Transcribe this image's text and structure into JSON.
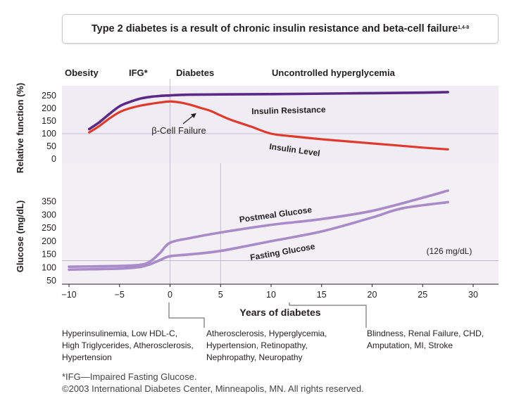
{
  "title": {
    "text": "Type 2 diabetes is a result of chronic insulin resistance and beta-cell failure",
    "refs": "1,4-8"
  },
  "stages": [
    {
      "label": "Obesity"
    },
    {
      "label": "IFG*"
    },
    {
      "label": "Diabetes"
    },
    {
      "label": "Uncontrolled hyperglycemia"
    }
  ],
  "complications": [
    {
      "lines": [
        "Hyperinsulinemia, Low HDL-C,",
        "High Triglycerides, Atherosclerosis,",
        "Hypertension"
      ]
    },
    {
      "lines": [
        "Atherosclerosis, Hyperglycemia,",
        "Hypertension, Retinopathy,",
        "Nephropathy, Neuropathy"
      ]
    },
    {
      "lines": [
        "Blindness, Renal Failure, CHD,",
        "Amputation, MI, Stroke"
      ]
    }
  ],
  "footnotes": {
    "ifg": "*IFG—Impaired Fasting Glucose.",
    "copyright": "©2003 International Diabetes Center, Minneapolis, MN. All rights reserved."
  },
  "colors": {
    "insulin_resistance": "#5b2a86",
    "insulin_level": "#e03a2f",
    "glucose": "#a98bc9",
    "panel_bg": "#efecf3",
    "text": "#231f20"
  },
  "chart_data": [
    {
      "type": "line",
      "panel": "top",
      "ylabel": "Relative function (%)",
      "ylim": [
        0,
        250
      ],
      "yticks": [
        0,
        50,
        100,
        150,
        200,
        250
      ],
      "xlim": [
        -10,
        30
      ],
      "reference_lines": [
        {
          "y": 100
        }
      ],
      "series": [
        {
          "name": "Insulin Resistance",
          "color": "#5b2a86",
          "x": [
            -8,
            -7,
            -6,
            -5,
            -4,
            -3,
            -2,
            -1,
            0,
            1,
            2,
            5,
            10,
            15,
            20,
            25,
            27.5
          ],
          "y": [
            118,
            145,
            178,
            208,
            225,
            238,
            245,
            249,
            251,
            253,
            254,
            255,
            256,
            258,
            260,
            262,
            264
          ]
        },
        {
          "name": "Insulin Level",
          "color": "#e03a2f",
          "x": [
            -8,
            -7,
            -6,
            -5,
            -4,
            -3,
            -2,
            -1,
            0,
            1,
            2,
            3,
            4,
            5,
            6,
            8,
            10,
            12,
            15,
            18,
            22,
            25,
            27.5
          ],
          "y": [
            105,
            130,
            160,
            185,
            200,
            210,
            217,
            223,
            227,
            223,
            214,
            202,
            190,
            172,
            155,
            128,
            100,
            90,
            78,
            68,
            55,
            45,
            38
          ]
        }
      ],
      "annotations": [
        {
          "text": "β-Cell Failure"
        }
      ]
    },
    {
      "type": "line",
      "panel": "bottom",
      "xlabel": "Years of diabetes",
      "ylabel": "Glucose (mg/dL)",
      "ylim": [
        50,
        400
      ],
      "yticks": [
        50,
        100,
        150,
        200,
        250,
        300,
        350
      ],
      "xlim": [
        -10,
        30
      ],
      "xticks": [
        -10,
        -5,
        0,
        5,
        10,
        15,
        20,
        25,
        30
      ],
      "xtick_labels": [
        "−10",
        "−5",
        "0",
        "5",
        "10",
        "15",
        "20",
        "25",
        "30"
      ],
      "reference_lines": [
        {
          "y": 126,
          "label": "(126 mg/dL)"
        }
      ],
      "series": [
        {
          "name": "Postmeal Glucose",
          "color": "#a98bc9",
          "x": [
            -10,
            -5,
            -3,
            -2,
            -1,
            0,
            2,
            5,
            10,
            15,
            20,
            25,
            27.5
          ],
          "y": [
            103,
            106,
            110,
            122,
            155,
            194,
            212,
            233,
            262,
            284,
            315,
            365,
            392
          ]
        },
        {
          "name": "Fasting Glucose",
          "color": "#a98bc9",
          "x": [
            -10,
            -5,
            -3,
            -2,
            -1,
            0,
            2,
            5,
            10,
            15,
            20,
            23,
            27.5
          ],
          "y": [
            92,
            96,
            102,
            112,
            128,
            143,
            150,
            163,
            200,
            237,
            290,
            325,
            348
          ]
        }
      ]
    }
  ]
}
